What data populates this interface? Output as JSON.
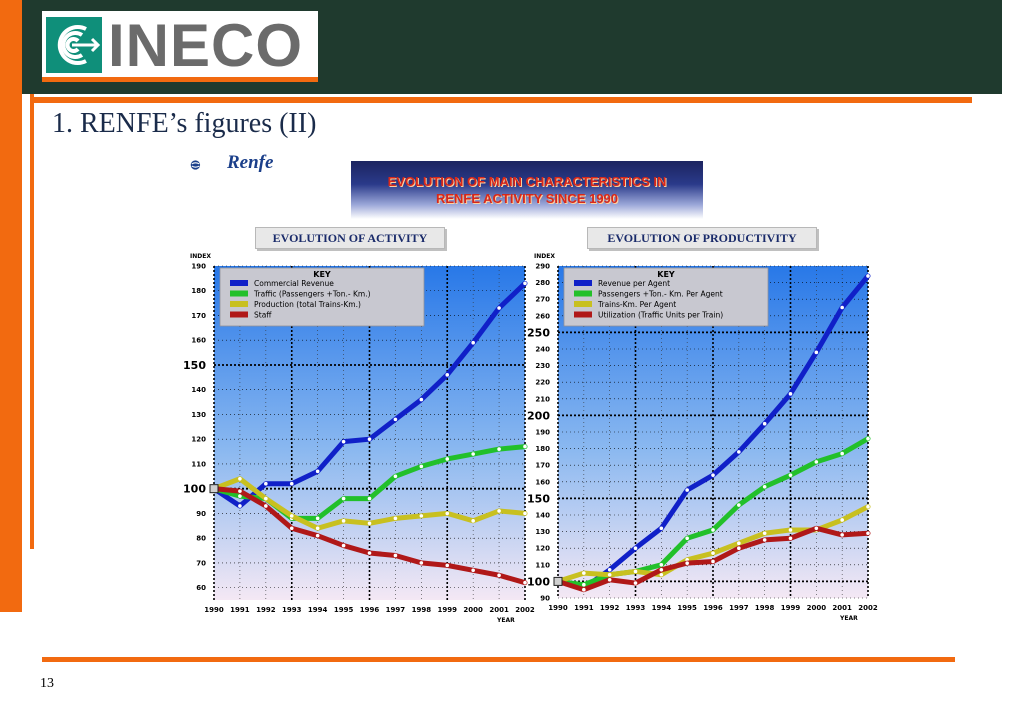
{
  "logo": {
    "text": "INECO"
  },
  "slide": {
    "title": "1. RENFE’s figures (II)",
    "page_number": "13"
  },
  "renfe": {
    "text": "Renfe"
  },
  "banner": {
    "line1": "EVOLUTION OF MAIN CHARACTERISTICS IN",
    "line2": "RENFE ACTIVITY SINCE 1990"
  },
  "colors": {
    "orange": "#f26a10",
    "header": "#1f3a2e",
    "blue": "#1020c8",
    "green": "#22c02a",
    "yellow": "#c8c020",
    "red": "#b01818"
  },
  "chart_data": [
    {
      "type": "line",
      "title": "EVOLUTION OF ACTIVITY",
      "ylabel": "INDEX",
      "xlabel": "YEAR",
      "ylim": [
        55,
        190
      ],
      "yticks": [
        60,
        70,
        80,
        90,
        100,
        110,
        120,
        130,
        140,
        150,
        160,
        170,
        180,
        190
      ],
      "x": [
        "1990",
        "1991",
        "1992",
        "1993",
        "1994",
        "1995",
        "1996",
        "1997",
        "1998",
        "1999",
        "2000",
        "2001",
        "2002"
      ],
      "legend_title": "KEY",
      "legend_position": "top-left",
      "grid": true,
      "series": [
        {
          "name": "Commercial Revenue",
          "color": "#1020c8",
          "values": [
            100,
            93,
            102,
            102,
            107,
            119,
            120,
            128,
            136,
            146,
            159,
            173,
            183
          ]
        },
        {
          "name": "Traffic (Passengers +Ton.- Km.)",
          "color": "#22c02a",
          "values": [
            100,
            97,
            96,
            88,
            88,
            96,
            96,
            105,
            109,
            112,
            114,
            116,
            117
          ]
        },
        {
          "name": "Production (total Trains-Km.)",
          "color": "#c8c020",
          "values": [
            100,
            104,
            96,
            89,
            84,
            87,
            86,
            88,
            89,
            90,
            87,
            91,
            90
          ]
        },
        {
          "name": "Staff",
          "color": "#b01818",
          "values": [
            100,
            99,
            93,
            84,
            81,
            77,
            74,
            73,
            70,
            69,
            67,
            65,
            62
          ]
        }
      ]
    },
    {
      "type": "line",
      "title": "EVOLUTION OF PRODUCTIVITY",
      "ylabel": "INDEX",
      "xlabel": "YEAR",
      "ylim": [
        90,
        290
      ],
      "yticks": [
        90,
        100,
        110,
        120,
        130,
        140,
        150,
        160,
        170,
        180,
        190,
        200,
        210,
        220,
        230,
        240,
        250,
        260,
        270,
        280,
        290
      ],
      "x": [
        "1990",
        "1991",
        "1992",
        "1993",
        "1994",
        "1995",
        "1996",
        "1997",
        "1998",
        "1999",
        "2000",
        "2001",
        "2002"
      ],
      "legend_title": "KEY",
      "legend_position": "top-left",
      "grid": true,
      "series": [
        {
          "name": "Revenue per Agent",
          "color": "#1020c8",
          "values": [
            100,
            96,
            107,
            120,
            132,
            155,
            164,
            178,
            195,
            213,
            238,
            265,
            284
          ]
        },
        {
          "name": "Passengers +Ton.- Km. Per Agent",
          "color": "#22c02a",
          "values": [
            100,
            98,
            104,
            106,
            110,
            126,
            131,
            146,
            157,
            164,
            172,
            177,
            186
          ]
        },
        {
          "name": "Trains-Km. Per Agent",
          "color": "#c8c020",
          "values": [
            100,
            105,
            104,
            106,
            104,
            113,
            117,
            123,
            129,
            131,
            131,
            137,
            145
          ]
        },
        {
          "name": "Utilization (Traffic Units per Train)",
          "color": "#b01818",
          "values": [
            100,
            95,
            101,
            99,
            107,
            111,
            112,
            120,
            125,
            126,
            132,
            128,
            129
          ]
        }
      ]
    }
  ]
}
